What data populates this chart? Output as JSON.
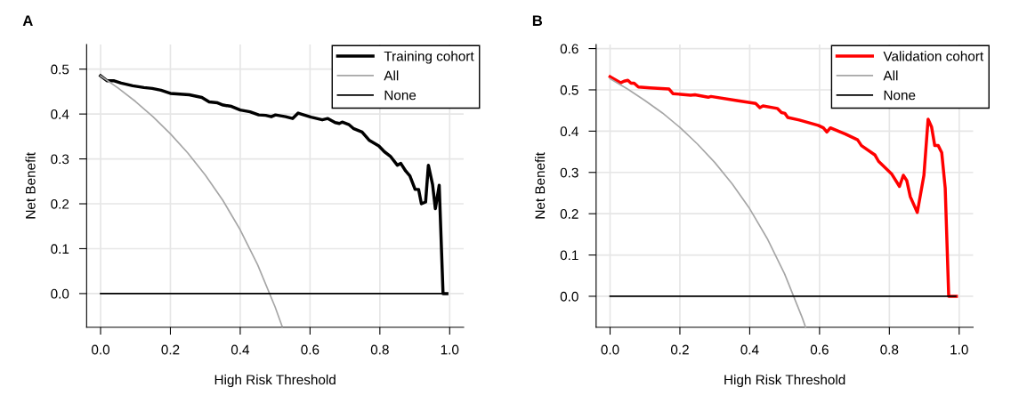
{
  "chart_data": [
    {
      "type": "line",
      "title": "A",
      "xlabel": "High Risk Threshold",
      "ylabel": "Net Benefit",
      "xlim": [
        -0.04,
        1.04
      ],
      "ylim": [
        -0.075,
        0.555
      ],
      "xticks": [
        {
          "value": 0,
          "label": "0.0"
        },
        {
          "value": 0.2,
          "label": "0.2"
        },
        {
          "value": 0.4,
          "label": "0.4"
        },
        {
          "value": 0.6,
          "label": "0.6"
        },
        {
          "value": 0.8,
          "label": "0.8"
        },
        {
          "value": 1,
          "label": "1.0"
        }
      ],
      "yticks": [
        {
          "value": 0,
          "label": "0.0"
        },
        {
          "value": 0.1,
          "label": "0.1"
        },
        {
          "value": 0.2,
          "label": "0.2"
        },
        {
          "value": 0.3,
          "label": "0.3"
        },
        {
          "value": 0.4,
          "label": "0.4"
        },
        {
          "value": 0.5,
          "label": "0.5"
        }
      ],
      "grid": true,
      "legend": "top right",
      "marker": "none",
      "line_style": "solid",
      "series": [
        {
          "name": "Training cohort",
          "color": "#000000",
          "x": [
            0,
            0.019,
            0.039,
            0.059,
            0.092,
            0.124,
            0.148,
            0.173,
            0.2,
            0.254,
            0.29,
            0.311,
            0.335,
            0.351,
            0.375,
            0.4,
            0.428,
            0.453,
            0.473,
            0.489,
            0.501,
            0.53,
            0.55,
            0.566,
            0.578,
            0.603,
            0.635,
            0.651,
            0.672,
            0.684,
            0.692,
            0.712,
            0.724,
            0.749,
            0.769,
            0.797,
            0.813,
            0.83,
            0.85,
            0.86,
            0.874,
            0.886,
            0.901,
            0.911,
            0.919,
            0.931,
            0.939,
            0.951,
            0.959,
            0.97,
            0.981,
            0.992
          ],
          "values": [
            0.485,
            0.474,
            0.474,
            0.469,
            0.463,
            0.459,
            0.457,
            0.453,
            0.446,
            0.443,
            0.437,
            0.427,
            0.425,
            0.42,
            0.417,
            0.409,
            0.405,
            0.398,
            0.397,
            0.394,
            0.398,
            0.394,
            0.39,
            0.402,
            0.399,
            0.393,
            0.387,
            0.39,
            0.381,
            0.379,
            0.382,
            0.376,
            0.368,
            0.36,
            0.342,
            0.329,
            0.316,
            0.306,
            0.286,
            0.29,
            0.273,
            0.262,
            0.232,
            0.232,
            0.2,
            0.204,
            0.286,
            0.243,
            0.189,
            0.241,
            0,
            0
          ]
        },
        {
          "name": "All",
          "color": "#a6a6a6",
          "x": [
            0,
            0.05,
            0.1,
            0.15,
            0.2,
            0.25,
            0.3,
            0.35,
            0.4,
            0.45,
            0.5,
            0.52
          ],
          "values": [
            0.485,
            0.458,
            0.428,
            0.394,
            0.356,
            0.313,
            0.264,
            0.208,
            0.142,
            0.064,
            -0.03,
            -0.073
          ]
        },
        {
          "name": "None",
          "color": "#000000",
          "x": [
            0,
            0.99
          ],
          "values": [
            0,
            0
          ]
        }
      ]
    },
    {
      "type": "line",
      "title": "B",
      "xlabel": "High Risk Threshold",
      "ylabel": "Net Benefit",
      "xlim": [
        -0.04,
        1.04
      ],
      "ylim": [
        -0.075,
        0.61
      ],
      "xticks": [
        {
          "value": 0,
          "label": "0.0"
        },
        {
          "value": 0.2,
          "label": "0.2"
        },
        {
          "value": 0.4,
          "label": "0.4"
        },
        {
          "value": 0.6,
          "label": "0.6"
        },
        {
          "value": 0.8,
          "label": "0.8"
        },
        {
          "value": 1,
          "label": "1.0"
        }
      ],
      "yticks": [
        {
          "value": 0,
          "label": "0.0"
        },
        {
          "value": 0.1,
          "label": "0.1"
        },
        {
          "value": 0.2,
          "label": "0.2"
        },
        {
          "value": 0.3,
          "label": "0.3"
        },
        {
          "value": 0.4,
          "label": "0.4"
        },
        {
          "value": 0.5,
          "label": "0.5"
        },
        {
          "value": 0.6,
          "label": "0.6"
        }
      ],
      "grid": true,
      "legend": "top right",
      "marker": "none",
      "line_style": "solid",
      "series": [
        {
          "name": "Validation cohort",
          "color": "#ff0000",
          "x": [
            0,
            0.03,
            0.04,
            0.051,
            0.06,
            0.069,
            0.081,
            0.114,
            0.169,
            0.18,
            0.231,
            0.243,
            0.281,
            0.289,
            0.363,
            0.417,
            0.429,
            0.438,
            0.479,
            0.491,
            0.501,
            0.509,
            0.542,
            0.596,
            0.611,
            0.621,
            0.631,
            0.674,
            0.709,
            0.72,
            0.759,
            0.769,
            0.806,
            0.829,
            0.84,
            0.85,
            0.86,
            0.88,
            0.899,
            0.911,
            0.921,
            0.93,
            0.94,
            0.95,
            0.96,
            0.97,
            0.992
          ],
          "values": [
            0.532,
            0.517,
            0.521,
            0.523,
            0.516,
            0.516,
            0.507,
            0.505,
            0.502,
            0.491,
            0.487,
            0.488,
            0.482,
            0.484,
            0.474,
            0.467,
            0.457,
            0.461,
            0.455,
            0.445,
            0.443,
            0.433,
            0.427,
            0.414,
            0.408,
            0.398,
            0.408,
            0.393,
            0.379,
            0.365,
            0.342,
            0.327,
            0.297,
            0.266,
            0.293,
            0.28,
            0.241,
            0.203,
            0.293,
            0.429,
            0.41,
            0.365,
            0.365,
            0.348,
            0.262,
            0,
            0
          ]
        },
        {
          "name": "All",
          "color": "#a6a6a6",
          "x": [
            0,
            0.05,
            0.1,
            0.15,
            0.2,
            0.25,
            0.3,
            0.35,
            0.4,
            0.45,
            0.5,
            0.55,
            0.56
          ],
          "values": [
            0.527,
            0.502,
            0.474,
            0.444,
            0.409,
            0.369,
            0.324,
            0.272,
            0.212,
            0.14,
            0.054,
            -0.051,
            -0.075
          ]
        },
        {
          "name": "None",
          "color": "#000000",
          "x": [
            0,
            0.99
          ],
          "values": [
            0,
            0
          ]
        }
      ]
    }
  ]
}
